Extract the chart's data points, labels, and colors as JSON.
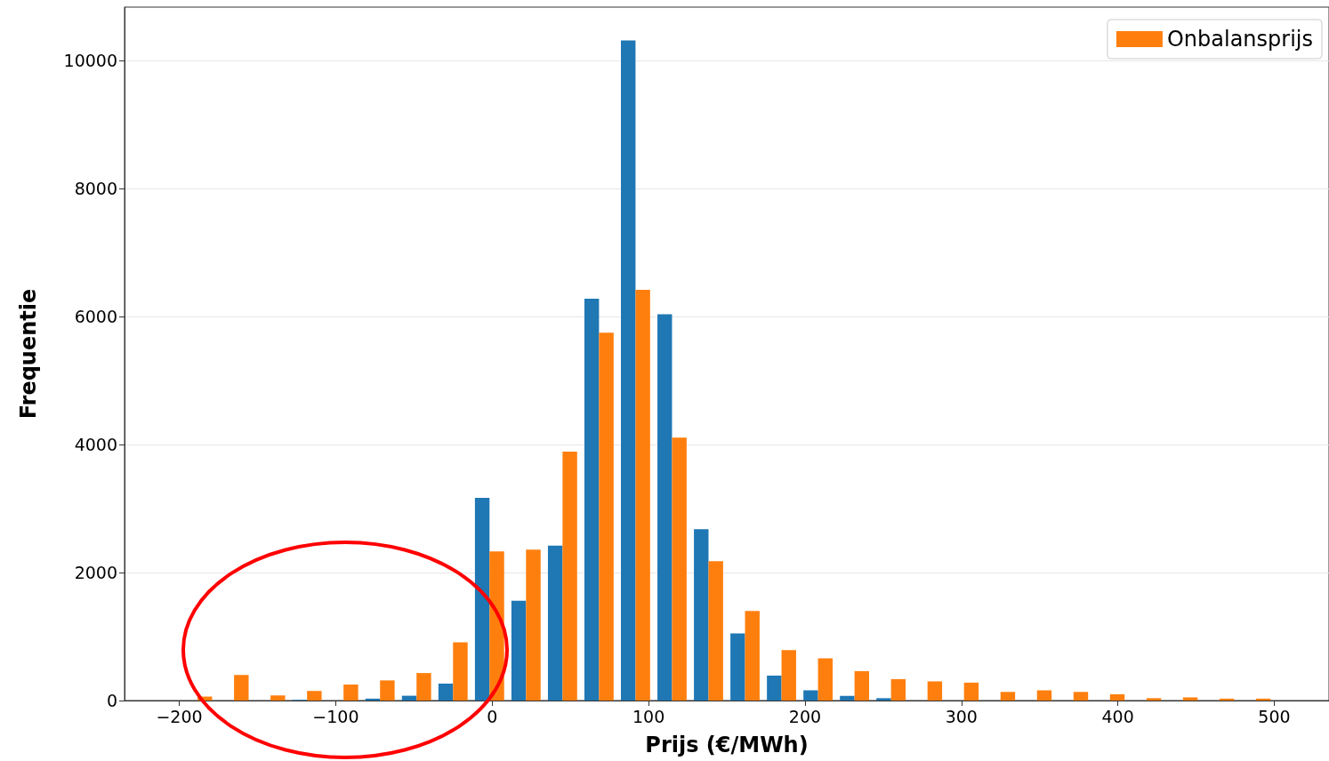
{
  "chart_data": {
    "type": "histogram",
    "xlabel": "Prijs (€/MWh)",
    "ylabel": "Frequentie",
    "bins": [
      -200,
      -176.67,
      -153.33,
      -130,
      -106.67,
      -83.33,
      -60,
      -36.67,
      -13.33,
      10,
      33.33,
      56.67,
      80,
      103.33,
      126.67,
      150,
      173.33,
      196.67,
      220,
      243.33,
      266.67,
      290,
      313.33,
      336.67,
      360,
      383.33,
      406.67,
      430,
      453.33,
      476.67,
      500
    ],
    "series": [
      {
        "color": "#1f77b4",
        "values": [
          0,
          0,
          0,
          10,
          null,
          30,
          75,
          265,
          3170,
          1560,
          2420,
          6280,
          10320,
          6040,
          2680,
          1050,
          390,
          160,
          73,
          37,
          null,
          0,
          0,
          0,
          0,
          0,
          0,
          0,
          0,
          0
        ]
      },
      {
        "name": "Onbalansprijs",
        "color": "#ff7f0e",
        "values": [
          62,
          400,
          80,
          150,
          250,
          315,
          430,
          910,
          2330,
          2360,
          3890,
          5750,
          6420,
          4110,
          2180,
          1400,
          790,
          660,
          460,
          335,
          300,
          280,
          135,
          160,
          135,
          98,
          37,
          49,
          30,
          30
        ]
      }
    ],
    "xlim": [
      -235,
      535
    ],
    "xticks": [
      {
        "value": -200,
        "label": "−200"
      },
      {
        "value": -100,
        "label": "−100"
      },
      0,
      100,
      200,
      300,
      400,
      500
    ],
    "ylim": [
      0,
      10840
    ],
    "yticks": [
      0,
      2000,
      4000,
      6000,
      8000,
      10000
    ],
    "grid": "y",
    "legend": "top right"
  }
}
